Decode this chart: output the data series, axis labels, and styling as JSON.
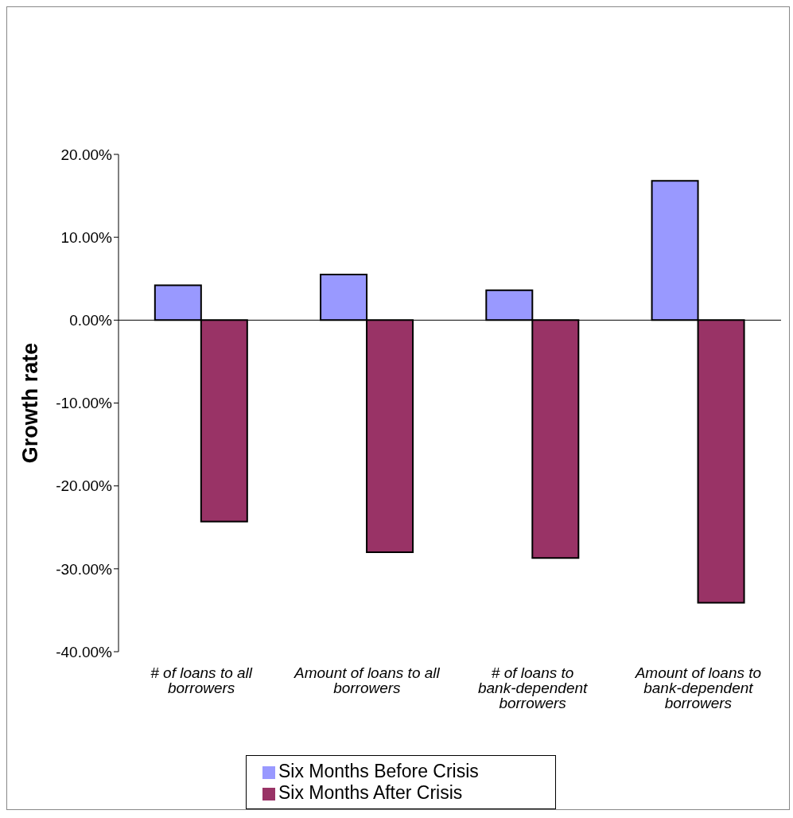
{
  "chart_data": {
    "type": "bar",
    "ylabel": "Growth rate",
    "categories": [
      "# of loans to all borrowers",
      "Amount of loans to all borrowers",
      "# of loans to bank-dependent borrowers",
      "Amount of loans to bank-dependent borrowers"
    ],
    "series": [
      {
        "name": "Six Months Before Crisis",
        "color": "#9999ff",
        "values": [
          4.2,
          5.5,
          3.6,
          16.8
        ]
      },
      {
        "name": "Six Months After Crisis",
        "color": "#993366",
        "values": [
          -24.3,
          -28.0,
          -28.7,
          -34.1
        ]
      }
    ],
    "ylim": [
      -40,
      20
    ],
    "yticks": [
      {
        "value": -40,
        "label": "-40.00%"
      },
      {
        "value": -30,
        "label": "-30.00%"
      },
      {
        "value": -20,
        "label": "-20.00%"
      },
      {
        "value": -10,
        "label": "-10.00%"
      },
      {
        "value": 0,
        "label": "0.00%"
      },
      {
        "value": 10,
        "label": "10.00%"
      },
      {
        "value": 20,
        "label": "20.00%"
      }
    ],
    "ref_lines": [
      {
        "axis": "y",
        "value": 0,
        "color": "#000000"
      }
    ],
    "grid": false,
    "legend": "bottom"
  }
}
